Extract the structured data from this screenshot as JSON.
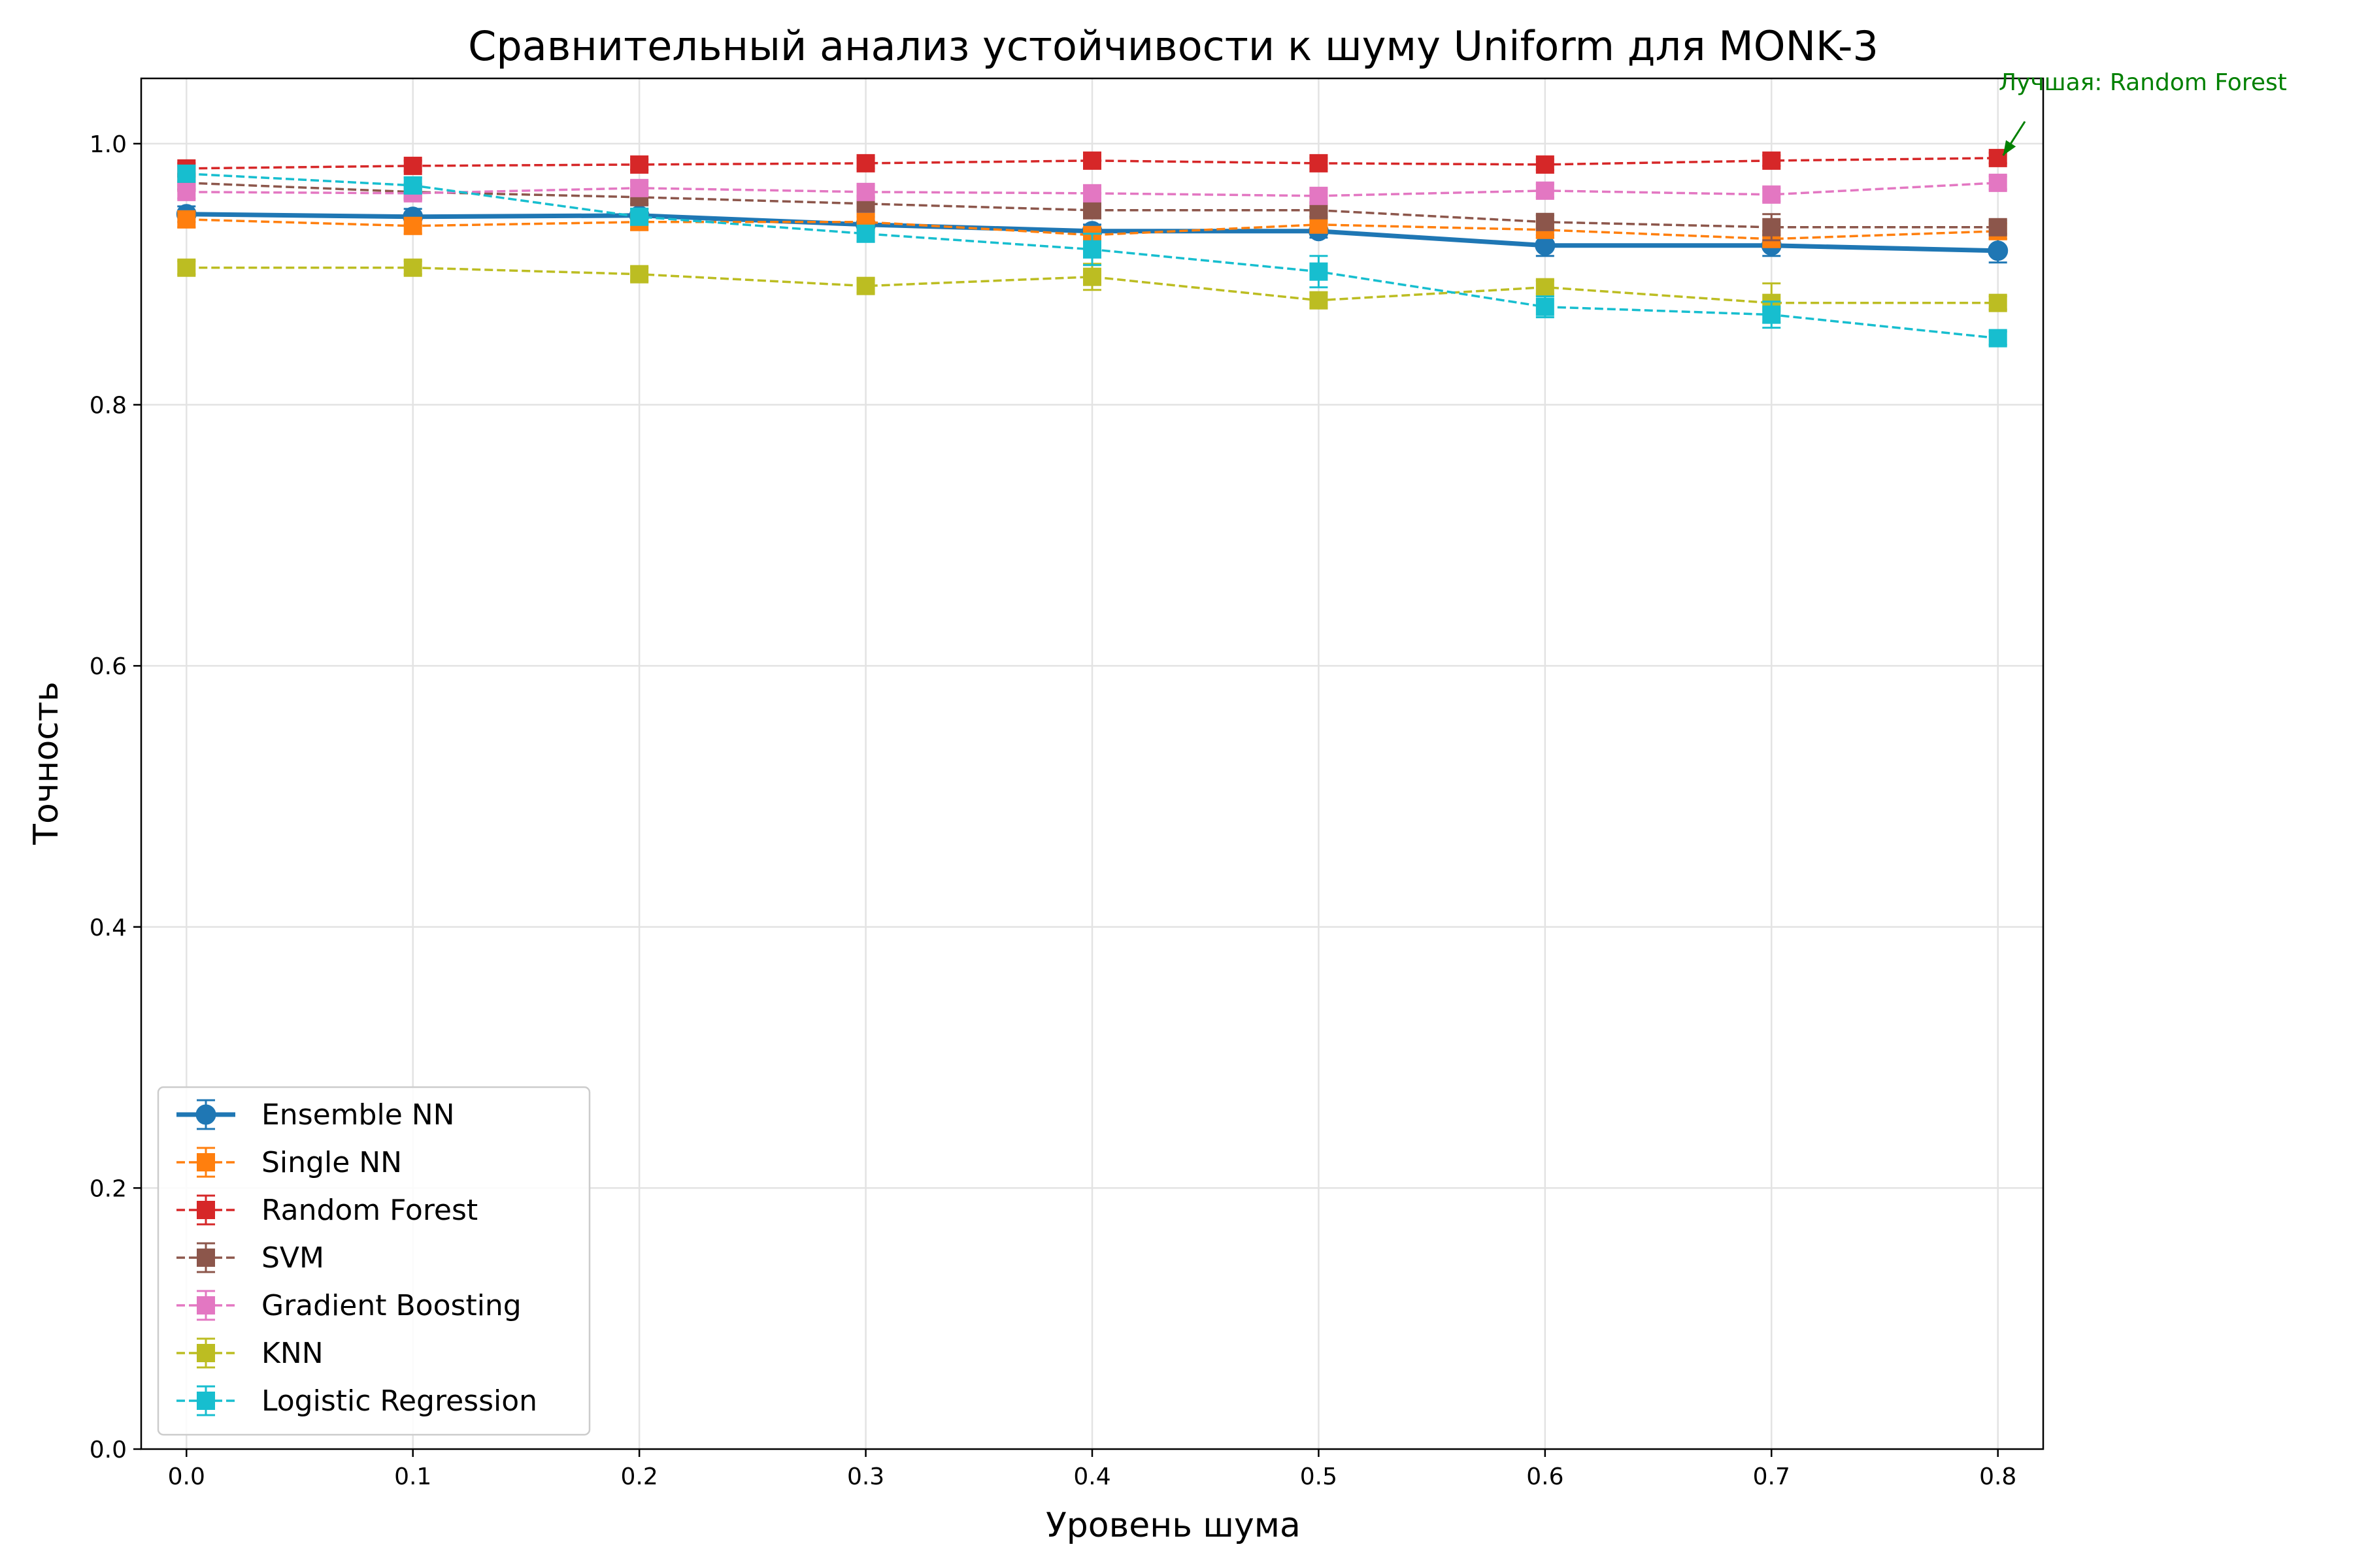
{
  "chart_data": {
    "type": "line",
    "title": "Сравнительный анализ устойчивости к шуму Uniform для MONK-3",
    "xlabel": "Уровень шума",
    "ylabel": "Точность",
    "x": [
      0.0,
      0.1,
      0.2,
      0.3,
      0.4,
      0.5,
      0.6,
      0.7,
      0.8
    ],
    "x_tick_labels": [
      "0.0",
      "0.1",
      "0.2",
      "0.3",
      "0.4",
      "0.5",
      "0.6",
      "0.7",
      "0.8"
    ],
    "y_tick_labels": [
      "0.0",
      "0.2",
      "0.4",
      "0.6",
      "0.8",
      "1.0"
    ],
    "xlim": [
      -0.02,
      0.82
    ],
    "ylim": [
      0.0,
      1.05
    ],
    "grid": true,
    "legend_position": "lower-left",
    "series": [
      {
        "name": "Ensemble NN",
        "color": "#1f77b4",
        "marker": "circle",
        "line_style": "solid",
        "values": [
          0.946,
          0.944,
          0.945,
          0.938,
          0.933,
          0.933,
          0.922,
          0.922,
          0.918
        ],
        "errors": [
          0.006,
          0.006,
          0.005,
          0.006,
          0.005,
          0.005,
          0.008,
          0.008,
          0.009
        ]
      },
      {
        "name": "Single NN",
        "color": "#ff7f0e",
        "marker": "square",
        "line_style": "dashed",
        "values": [
          0.942,
          0.937,
          0.94,
          0.94,
          0.93,
          0.938,
          0.934,
          0.927,
          0.933
        ],
        "errors": [
          0.006,
          0.006,
          0.006,
          0.006,
          0.006,
          0.006,
          0.006,
          0.006,
          0.006
        ]
      },
      {
        "name": "Random Forest",
        "color": "#d62728",
        "marker": "square",
        "line_style": "dashed",
        "values": [
          0.981,
          0.983,
          0.984,
          0.985,
          0.987,
          0.985,
          0.984,
          0.987,
          0.989
        ],
        "errors": [
          0.004,
          0.004,
          0.004,
          0.004,
          0.004,
          0.004,
          0.004,
          0.004,
          0.004
        ]
      },
      {
        "name": "SVM",
        "color": "#8c564b",
        "marker": "square",
        "line_style": "dashed",
        "values": [
          0.97,
          0.963,
          0.959,
          0.954,
          0.949,
          0.949,
          0.94,
          0.936,
          0.936
        ],
        "errors": [
          0.005,
          0.005,
          0.005,
          0.005,
          0.005,
          0.005,
          0.005,
          0.01,
          0.005
        ]
      },
      {
        "name": "Gradient Boosting",
        "color": "#e377c2",
        "marker": "square",
        "line_style": "dashed",
        "values": [
          0.963,
          0.962,
          0.966,
          0.963,
          0.962,
          0.96,
          0.964,
          0.961,
          0.97
        ],
        "errors": [
          0.005,
          0.005,
          0.005,
          0.005,
          0.005,
          0.005,
          0.005,
          0.005,
          0.005
        ]
      },
      {
        "name": "KNN",
        "color": "#bcbd22",
        "marker": "square",
        "line_style": "dashed",
        "values": [
          0.905,
          0.905,
          0.9,
          0.891,
          0.898,
          0.88,
          0.89,
          0.878,
          0.878
        ],
        "errors": [
          0.005,
          0.005,
          0.005,
          0.005,
          0.01,
          0.006,
          0.005,
          0.015,
          0.005
        ]
      },
      {
        "name": "Logistic Regression",
        "color": "#17becf",
        "marker": "square",
        "line_style": "dashed",
        "values": [
          0.977,
          0.968,
          0.944,
          0.931,
          0.919,
          0.902,
          0.875,
          0.869,
          0.851
        ],
        "errors": [
          0.006,
          0.006,
          0.006,
          0.006,
          0.012,
          0.012,
          0.008,
          0.01,
          0.005
        ]
      }
    ],
    "annotation": {
      "text": "Лучшая: Random Forest",
      "color": "#008000",
      "point_x": 0.8,
      "point_y": 0.989
    }
  }
}
